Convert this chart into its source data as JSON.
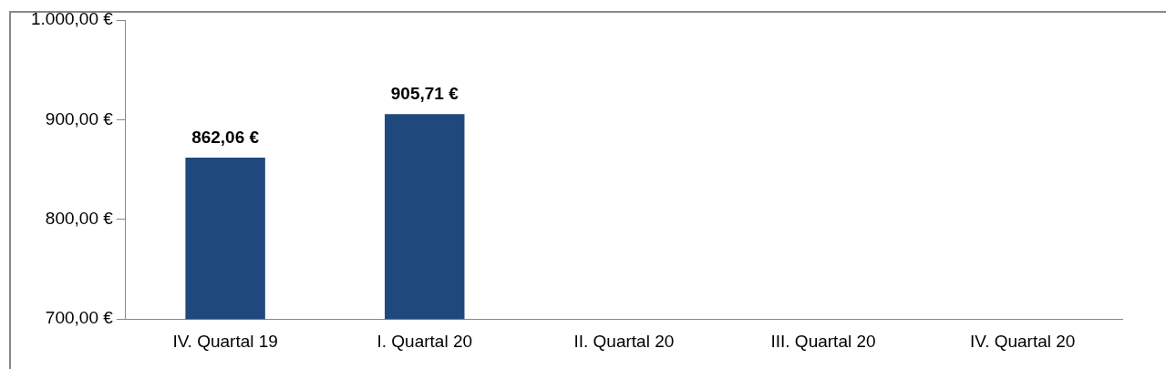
{
  "chart_data": {
    "type": "bar",
    "categories": [
      "IV. Quartal 19",
      "I. Quartal 20",
      "II. Quartal 20",
      "III. Quartal 20",
      "IV. Quartal 20"
    ],
    "values": [
      862.06,
      905.71,
      null,
      null,
      null
    ],
    "value_labels": [
      "862,06 €",
      "905,71 €",
      null,
      null,
      null
    ],
    "color": "#1f497d",
    "ylim": [
      700,
      1000
    ],
    "yticks": [
      {
        "value": 700,
        "label": "700,00 €"
      },
      {
        "value": 800,
        "label": "800,00 €"
      },
      {
        "value": 900,
        "label": "900,00 €"
      },
      {
        "value": 1000,
        "label": "1.000,00 €"
      }
    ],
    "grid": false,
    "legend": false
  }
}
